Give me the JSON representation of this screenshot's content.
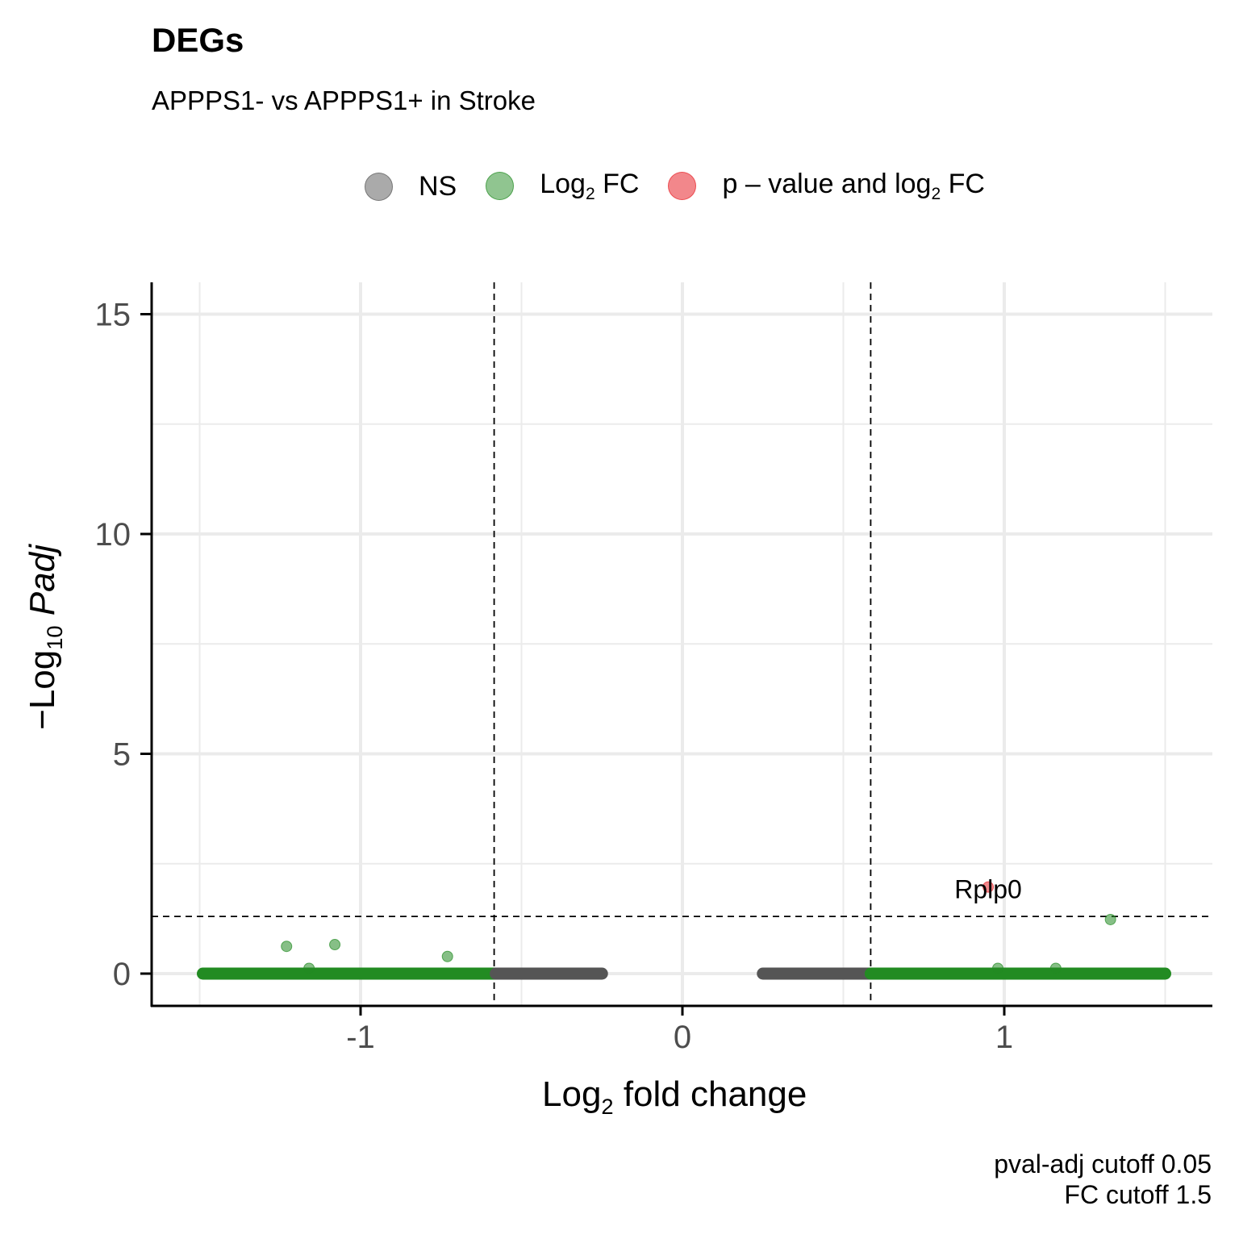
{
  "chart_data": {
    "type": "scatter",
    "title": "DEGs",
    "subtitle": "APPPS1- vs APPPS1+ in Stroke",
    "xlabel": "Log2 fold change",
    "ylabel": "-Log10 Padj",
    "xlim": [
      -1.5,
      1.65
    ],
    "ylim": [
      -0.75,
      15.7
    ],
    "x_ticks": [
      -1,
      0,
      1
    ],
    "x_tick_labels": [
      "-1",
      "0",
      "1"
    ],
    "y_ticks": [
      0,
      5,
      10,
      15
    ],
    "y_tick_labels": [
      "0",
      "5",
      "10",
      "15"
    ],
    "grid": true,
    "legend": {
      "position": "top",
      "entries": [
        {
          "key": "ns",
          "label_parts": [
            "NS"
          ],
          "color": "#555555"
        },
        {
          "key": "fc",
          "label_parts": [
            "Log",
            "2",
            " FC"
          ],
          "color": "#228B22"
        },
        {
          "key": "both",
          "label_parts": [
            "p – value and log",
            "2",
            " FC"
          ],
          "color": "#E8252B"
        }
      ]
    },
    "cutoff_lines": {
      "fc_neg": -0.585,
      "fc_pos": 0.585,
      "pval_line": 1.3
    },
    "band_segments": [
      {
        "series": "fc",
        "from": -1.49,
        "to": -0.58,
        "y": 0
      },
      {
        "series": "ns",
        "from": -0.58,
        "to": -0.25,
        "y": 0
      },
      {
        "series": "ns",
        "from": 0.25,
        "to": 0.585,
        "y": 0
      },
      {
        "series": "fc",
        "from": 0.585,
        "to": 1.5,
        "y": 0
      }
    ],
    "series": [
      {
        "name": "Log2 FC",
        "key": "fc",
        "color": "#228B22",
        "points": [
          [
            -1.23,
            0.62
          ],
          [
            -1.08,
            0.66
          ],
          [
            -0.73,
            0.39
          ],
          [
            -1.16,
            0.12
          ],
          [
            0.98,
            0.12
          ],
          [
            1.16,
            0.12
          ],
          [
            1.33,
            1.23
          ]
        ]
      },
      {
        "name": "p-value and log2 FC",
        "key": "both",
        "color": "#E8252B",
        "points": [
          [
            0.95,
            1.97
          ]
        ]
      }
    ],
    "annotations": [
      {
        "label": "Rplp0",
        "x": 0.95,
        "y": 1.97
      }
    ],
    "caption": {
      "line1": "pval-adj cutoff  0.05",
      "line2": "FC cutoff  1.5"
    }
  }
}
